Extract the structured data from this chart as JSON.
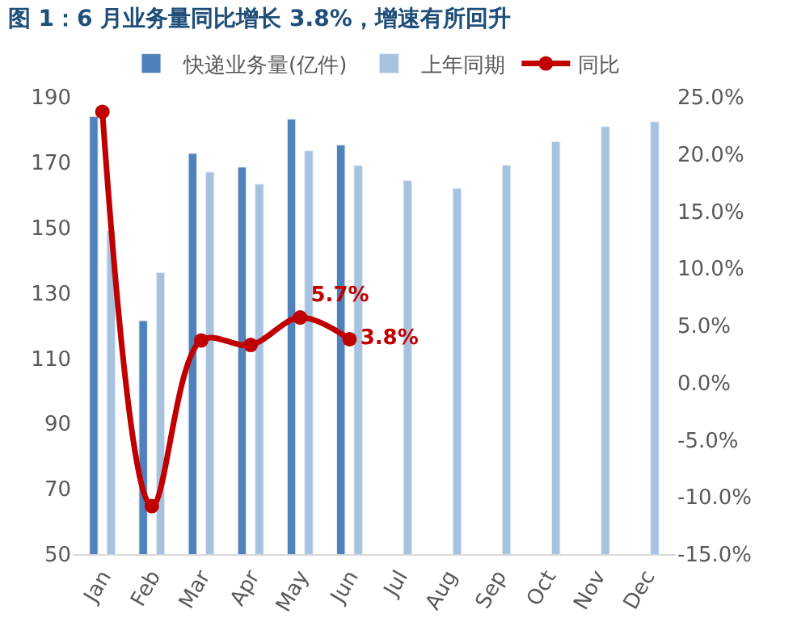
{
  "chart_data": {
    "type": "bar",
    "title": "图 1：6 月业务量同比增长 3.8%，增速有所回升",
    "categories": [
      "Jan",
      "Feb",
      "Mar",
      "Apr",
      "May",
      "Jun",
      "Jul",
      "Aug",
      "Sep",
      "Oct",
      "Nov",
      "Dec"
    ],
    "series": [
      {
        "name": "快递业务量(亿件)",
        "color": "#4f81bd",
        "values": [
          184,
          121.5,
          172.7,
          168.5,
          183.2,
          175.3,
          null,
          null,
          null,
          null,
          null,
          null
        ]
      },
      {
        "name": "上年同期",
        "color": "#a7c2df",
        "values": [
          149,
          136.2,
          167,
          163.3,
          173.5,
          169,
          164.4,
          162,
          169.1,
          176.3,
          180.9,
          182.4
        ]
      },
      {
        "name": "同比",
        "type": "line",
        "axis": "y2",
        "color": "#c00000",
        "marker": "circle",
        "values": [
          23.7,
          -10.8,
          3.7,
          3.3,
          5.7,
          3.8,
          null,
          null,
          null,
          null,
          null,
          null
        ],
        "value_labels": [
          null,
          null,
          null,
          null,
          "5.7%",
          "3.8%",
          null,
          null,
          null,
          null,
          null,
          null
        ]
      }
    ],
    "ylim": [
      50,
      190
    ],
    "yticks": [
      50,
      70,
      90,
      110,
      130,
      150,
      170,
      190
    ],
    "y2lim": [
      -15,
      25
    ],
    "y2ticks": [
      {
        "value": -15,
        "label": "-15.0%"
      },
      {
        "value": -10,
        "label": "-10.0%"
      },
      {
        "value": -5,
        "label": "-5.0%"
      },
      {
        "value": 0,
        "label": "0.0%"
      },
      {
        "value": 5,
        "label": "5.0%"
      },
      {
        "value": 10,
        "label": "10.0%"
      },
      {
        "value": 15,
        "label": "15.0%"
      },
      {
        "value": 20,
        "label": "20.0%"
      },
      {
        "value": 25,
        "label": "25.0%"
      }
    ],
    "legend": "top"
  }
}
